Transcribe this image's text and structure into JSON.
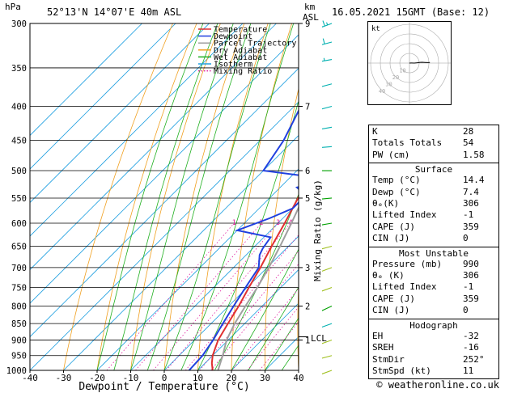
{
  "header": {
    "pressure_unit": "hPa",
    "location": "52°13'N  14°07'E  40m  ASL",
    "height_unit_km": "km",
    "height_unit_asl": "ASL",
    "datetime": "16.05.2021  15GMT  (Base: 12)"
  },
  "chart_data": {
    "type": "line",
    "title": "",
    "xlabel": "Dewpoint / Temperature (°C)",
    "ylabel": "hPa",
    "ylabel_right": "Mixing Ratio (g/kg)",
    "xlim": [
      -40,
      40
    ],
    "ylim": [
      1000,
      300
    ],
    "y_scale": "log",
    "x_ticks": [
      -40,
      -30,
      -20,
      -10,
      0,
      10,
      20,
      30,
      40
    ],
    "pressure_levels": [
      300,
      350,
      400,
      450,
      500,
      550,
      600,
      650,
      700,
      750,
      800,
      850,
      900,
      950,
      1000
    ],
    "height_ticks_km": [
      {
        "p": 300,
        "km": "9"
      },
      {
        "p": 400,
        "km": "7"
      },
      {
        "p": 500,
        "km": "6"
      },
      {
        "p": 550,
        "km": "5"
      },
      {
        "p": 700,
        "km": "3"
      },
      {
        "p": 800,
        "km": "2"
      },
      {
        "p": 900,
        "km": "1"
      }
    ],
    "lcl": {
      "p": 890,
      "label": "LCL"
    },
    "legend": {
      "placement": "top",
      "entries": [
        {
          "name": "Temperature",
          "color": "#e03030",
          "style": "solid"
        },
        {
          "name": "Dewpoint",
          "color": "#2040e0",
          "style": "solid"
        },
        {
          "name": "Parcel Trajectory",
          "color": "#a0a0a0",
          "style": "solid"
        },
        {
          "name": "Dry Adiabat",
          "color": "#f0a020",
          "style": "solid"
        },
        {
          "name": "Wet Adiabat",
          "color": "#20b020",
          "style": "solid"
        },
        {
          "name": "Isotherm",
          "color": "#20a0e0",
          "style": "solid"
        },
        {
          "name": "Mixing Ratio",
          "color": "#e020a0",
          "style": "dotted"
        }
      ]
    },
    "mixing_ratio_labels": [
      "1",
      "2",
      "3",
      "4",
      "6",
      "8",
      "10",
      "15",
      "20",
      "25"
    ],
    "series": [
      {
        "name": "Temperature",
        "color": "#e03030",
        "points": [
          [
            1000,
            14.4
          ],
          [
            975,
            12
          ],
          [
            950,
            10
          ],
          [
            925,
            8.5
          ],
          [
            900,
            7
          ],
          [
            850,
            5
          ],
          [
            800,
            3
          ],
          [
            750,
            0.5
          ],
          [
            700,
            -2
          ],
          [
            650,
            -5
          ],
          [
            600,
            -8
          ],
          [
            550,
            -11.5
          ],
          [
            500,
            -16
          ],
          [
            450,
            -22
          ],
          [
            400,
            -29
          ],
          [
            350,
            -36
          ],
          [
            300,
            -44
          ]
        ]
      },
      {
        "name": "Dewpoint",
        "color": "#2040e0",
        "points": [
          [
            1000,
            7.4
          ],
          [
            950,
            7
          ],
          [
            900,
            5.5
          ],
          [
            850,
            3.5
          ],
          [
            800,
            1.5
          ],
          [
            750,
            -0.5
          ],
          [
            700,
            -2.5
          ],
          [
            670,
            -6
          ],
          [
            655,
            -7
          ],
          [
            630,
            -8
          ],
          [
            615,
            -20
          ],
          [
            590,
            -14
          ],
          [
            570,
            -10
          ],
          [
            545,
            -10
          ],
          [
            530,
            -15
          ],
          [
            515,
            -8
          ],
          [
            500,
            -30
          ],
          [
            450,
            -33
          ],
          [
            400,
            -38
          ],
          [
            350,
            -45
          ],
          [
            300,
            -53
          ]
        ]
      },
      {
        "name": "Parcel Trajectory",
        "color": "#a0a0a0",
        "points": [
          [
            1000,
            16
          ],
          [
            950,
            13
          ],
          [
            900,
            9.5
          ],
          [
            850,
            7
          ],
          [
            800,
            5
          ],
          [
            750,
            3
          ],
          [
            700,
            0.5
          ],
          [
            650,
            -2.5
          ],
          [
            600,
            -6
          ],
          [
            550,
            -10
          ],
          [
            500,
            -14.5
          ],
          [
            450,
            -20.5
          ],
          [
            400,
            -27
          ],
          [
            350,
            -34
          ],
          [
            300,
            -42
          ]
        ]
      }
    ],
    "wind_barbs": [
      {
        "p": 300,
        "dir": 250,
        "spd": 45,
        "color": "#00b0b0"
      },
      {
        "p": 320,
        "dir": 255,
        "spd": 40,
        "color": "#00b0b0"
      },
      {
        "p": 340,
        "dir": 260,
        "spd": 35,
        "color": "#00b0b0"
      },
      {
        "p": 370,
        "dir": 255,
        "spd": 30,
        "color": "#00b0b0"
      },
      {
        "p": 400,
        "dir": 255,
        "spd": 30,
        "color": "#00b0b0"
      },
      {
        "p": 430,
        "dir": 260,
        "spd": 25,
        "color": "#00b0b0"
      },
      {
        "p": 460,
        "dir": 265,
        "spd": 25,
        "color": "#00b0b0"
      },
      {
        "p": 500,
        "dir": 270,
        "spd": 20,
        "color": "#00a000"
      },
      {
        "p": 550,
        "dir": 265,
        "spd": 20,
        "color": "#00a000"
      },
      {
        "p": 600,
        "dir": 260,
        "spd": 15,
        "color": "#00a000"
      },
      {
        "p": 650,
        "dir": 255,
        "spd": 15,
        "color": "#a0c020"
      },
      {
        "p": 700,
        "dir": 250,
        "spd": 15,
        "color": "#a0c020"
      },
      {
        "p": 750,
        "dir": 250,
        "spd": 10,
        "color": "#a0c020"
      },
      {
        "p": 800,
        "dir": 245,
        "spd": 10,
        "color": "#00a000"
      },
      {
        "p": 850,
        "dir": 250,
        "spd": 10,
        "color": "#00b0b0"
      },
      {
        "p": 900,
        "dir": 250,
        "spd": 10,
        "color": "#a0c020"
      },
      {
        "p": 950,
        "dir": 255,
        "spd": 10,
        "color": "#a0c020"
      },
      {
        "p": 1000,
        "dir": 250,
        "spd": 10,
        "color": "#a0c020"
      }
    ]
  },
  "hodograph": {
    "label": "kt",
    "ring_labels": [
      "10",
      "20",
      "30",
      "40"
    ],
    "trace": [
      [
        0,
        0
      ],
      [
        2,
        1
      ],
      [
        5,
        2
      ],
      [
        8,
        4
      ],
      [
        11,
        6
      ],
      [
        13,
        7
      ],
      [
        16,
        8
      ],
      [
        19,
        9
      ],
      [
        21,
        10
      ]
    ]
  },
  "indices": {
    "top": [
      {
        "label": "K",
        "value": "28"
      },
      {
        "label": "Totals Totals",
        "value": "54"
      },
      {
        "label": "PW (cm)",
        "value": "1.58"
      }
    ],
    "surface": {
      "title": "Surface",
      "rows": [
        {
          "label": "Temp (°C)",
          "value": "14.4"
        },
        {
          "label": "Dewp (°C)",
          "value": "7.4"
        },
        {
          "label": "θₑ(K)",
          "value": "306"
        },
        {
          "label": "Lifted Index",
          "value": "-1"
        },
        {
          "label": "CAPE (J)",
          "value": "359"
        },
        {
          "label": "CIN (J)",
          "value": "0"
        }
      ]
    },
    "most_unstable": {
      "title": "Most Unstable",
      "rows": [
        {
          "label": "Pressure (mb)",
          "value": "990"
        },
        {
          "label": "θₑ (K)",
          "value": "306"
        },
        {
          "label": "Lifted Index",
          "value": "-1"
        },
        {
          "label": "CAPE (J)",
          "value": "359"
        },
        {
          "label": "CIN (J)",
          "value": "0"
        }
      ]
    },
    "hodograph": {
      "title": "Hodograph",
      "rows": [
        {
          "label": "EH",
          "value": "-32"
        },
        {
          "label": "SREH",
          "value": "-16"
        },
        {
          "label": "StmDir",
          "value": "252°"
        },
        {
          "label": "StmSpd (kt)",
          "value": "11"
        }
      ]
    }
  },
  "footer": {
    "credit": "© weatheronline.co.uk"
  }
}
